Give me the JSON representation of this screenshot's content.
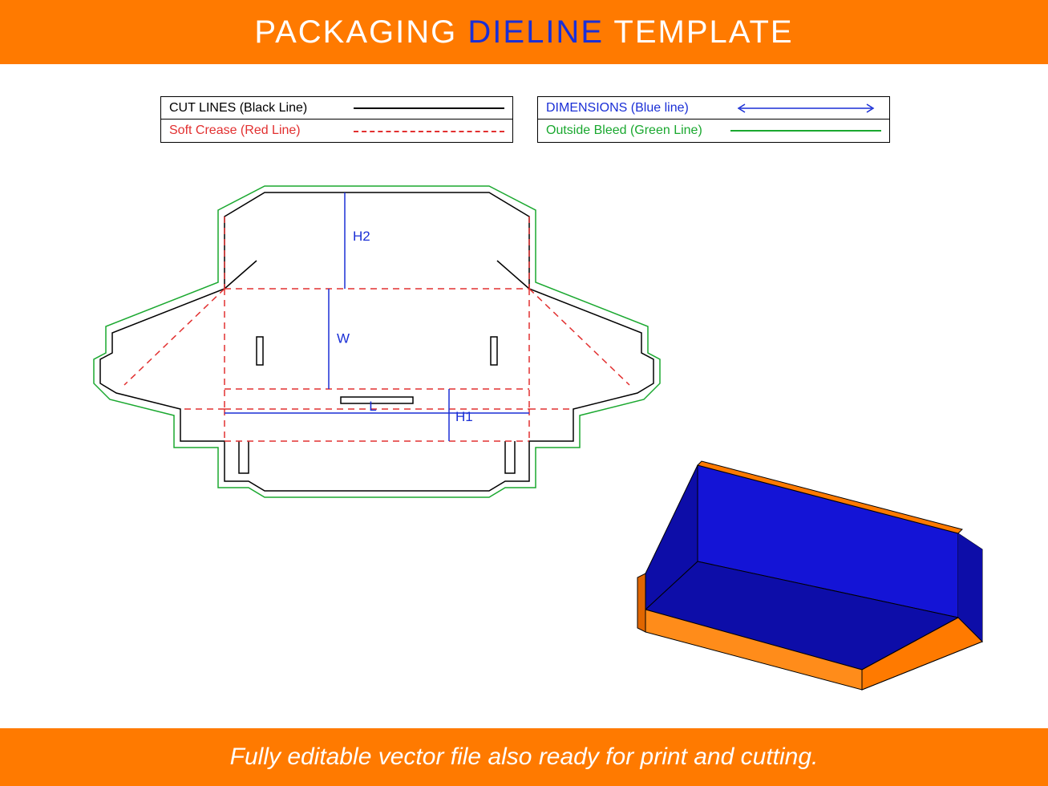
{
  "header": {
    "part1": "PACKAGING ",
    "part2": "DIELINE",
    "part3": " TEMPLATE",
    "bg_color": "#ff7a00",
    "text_color": "#ffffff",
    "highlight_color": "#1a2fd6",
    "fontsize": 40
  },
  "footer": {
    "text": "Fully editable vector file also ready for print and cutting.",
    "bg_color": "#ff7a00",
    "text_color": "#ffffff",
    "fontsize": 30
  },
  "legend": {
    "border_color": "#000000",
    "rows_left": [
      {
        "label": "CUT LINES (Black Line)",
        "color": "#000000",
        "style": "solid"
      },
      {
        "label": "Soft Crease (Red Line)",
        "color": "#e23030",
        "style": "dashed"
      }
    ],
    "rows_right": [
      {
        "label": "DIMENSIONS (Blue line)",
        "color": "#1a2fd6",
        "style": "arrow"
      },
      {
        "label": "Outside Bleed (Green Line)",
        "color": "#1aa82f",
        "style": "solid"
      }
    ]
  },
  "dieline": {
    "cut_color": "#000000",
    "crease_color": "#e23030",
    "bleed_color": "#1aa82f",
    "dimension_color": "#1a2fd6",
    "stroke_width": 1.5,
    "dash_pattern": "8,6",
    "labels": {
      "H2": "H2",
      "W": "W",
      "L": "L",
      "H1": "H1"
    }
  },
  "box3d": {
    "outer_color": "#ff7a00",
    "outer_color_dark": "#e06600",
    "outer_color_light": "#ff8c1a",
    "inner_color": "#1414d6",
    "inner_color_dark": "#0d0da8",
    "edge_color": "#000000"
  },
  "background_color": "#ffffff"
}
